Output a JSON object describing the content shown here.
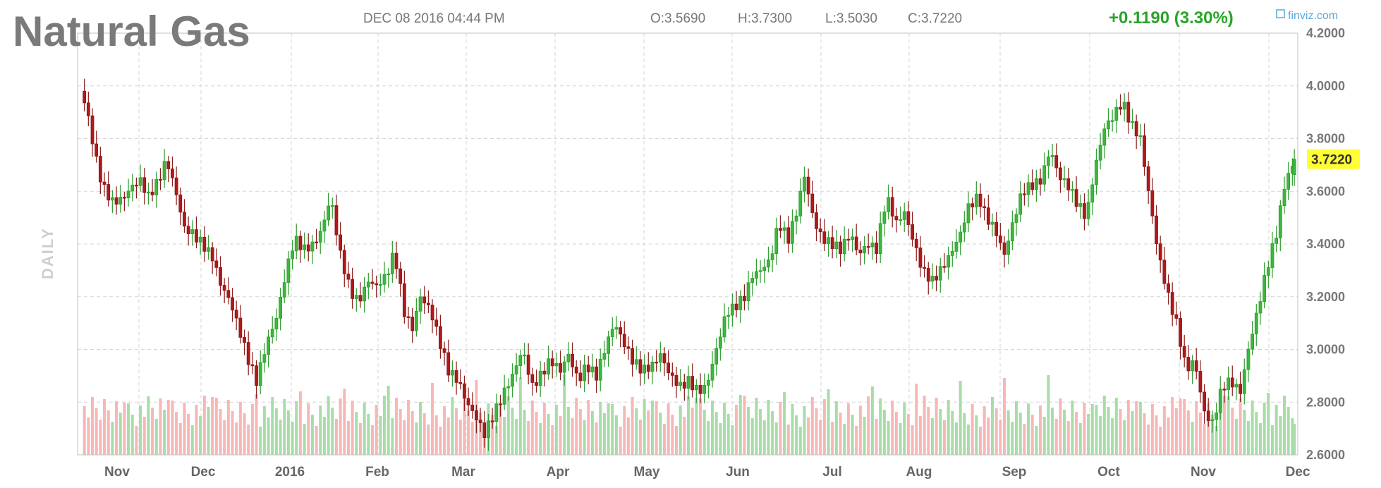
{
  "header": {
    "title": "Natural Gas",
    "datetime": "DEC 08 2016 04:44 PM",
    "open": "O:3.5690",
    "high": "H:3.7300",
    "low": "L:3.5030",
    "close": "C:3.7220",
    "change": "+0.1190 (3.30%)",
    "brand": "finviz.com",
    "period": "DAILY",
    "last_price_label": "3.7220"
  },
  "colors": {
    "up": "#2e9e2e",
    "up_body": "#3cb83c",
    "down": "#8b1a1a",
    "down_body": "#b01919",
    "vol_up": "#a8dca8",
    "vol_down": "#f7b7b7",
    "change_color": "#29a329"
  },
  "chart_data": {
    "type": "candlestick",
    "title": "Natural Gas",
    "ylim": [
      2.6,
      4.2
    ],
    "y_ticks": [
      "4.2000",
      "4.0000",
      "3.8000",
      "3.6000",
      "3.4000",
      "3.2000",
      "3.0000",
      "2.8000",
      "2.6000"
    ],
    "x_ticks": [
      "Nov",
      "Dec",
      "2016",
      "Feb",
      "Mar",
      "Apr",
      "May",
      "Jun",
      "Jul",
      "Aug",
      "Sep",
      "Oct",
      "Nov",
      "Dec"
    ],
    "grid": true,
    "last_close": 3.722,
    "closes": [
      [
        0,
        3.98
      ],
      [
        3,
        3.92
      ],
      [
        7,
        3.75
      ],
      [
        11,
        3.62
      ],
      [
        16,
        3.56
      ],
      [
        21,
        3.57
      ],
      [
        26,
        3.62
      ],
      [
        30,
        3.64
      ],
      [
        34,
        3.58
      ],
      [
        39,
        3.64
      ],
      [
        43,
        3.72
      ],
      [
        47,
        3.62
      ],
      [
        52,
        3.46
      ],
      [
        56,
        3.44
      ],
      [
        61,
        3.4
      ],
      [
        66,
        3.35
      ],
      [
        70,
        3.25
      ],
      [
        75,
        3.18
      ],
      [
        80,
        3.06
      ],
      [
        84,
        2.96
      ],
      [
        88,
        2.88
      ],
      [
        93,
        3.02
      ],
      [
        98,
        3.12
      ],
      [
        103,
        3.3
      ],
      [
        107,
        3.42
      ],
      [
        112,
        3.38
      ],
      [
        117,
        3.4
      ],
      [
        121,
        3.46
      ],
      [
        125,
        3.58
      ],
      [
        130,
        3.36
      ],
      [
        135,
        3.22
      ],
      [
        139,
        3.18
      ],
      [
        144,
        3.26
      ],
      [
        148,
        3.24
      ],
      [
        153,
        3.28
      ],
      [
        157,
        3.37
      ],
      [
        162,
        3.14
      ],
      [
        166,
        3.08
      ],
      [
        170,
        3.2
      ],
      [
        175,
        3.15
      ],
      [
        180,
        3.02
      ],
      [
        184,
        2.92
      ],
      [
        189,
        2.88
      ],
      [
        193,
        2.8
      ],
      [
        198,
        2.74
      ],
      [
        202,
        2.68
      ],
      [
        207,
        2.76
      ],
      [
        212,
        2.84
      ],
      [
        216,
        2.9
      ],
      [
        221,
        3.0
      ],
      [
        226,
        2.86
      ],
      [
        230,
        2.9
      ],
      [
        235,
        2.96
      ],
      [
        240,
        2.92
      ],
      [
        244,
        2.98
      ],
      [
        249,
        2.88
      ],
      [
        253,
        2.94
      ],
      [
        258,
        2.9
      ],
      [
        263,
        3.02
      ],
      [
        267,
        3.1
      ],
      [
        272,
        3.02
      ],
      [
        276,
        2.96
      ],
      [
        281,
        2.92
      ],
      [
        286,
        2.94
      ],
      [
        290,
        2.98
      ],
      [
        295,
        2.9
      ],
      [
        300,
        2.86
      ],
      [
        304,
        2.88
      ],
      [
        309,
        2.84
      ],
      [
        313,
        2.86
      ],
      [
        318,
        3.0
      ],
      [
        323,
        3.14
      ],
      [
        327,
        3.16
      ],
      [
        332,
        3.2
      ],
      [
        336,
        3.28
      ],
      [
        340,
        3.3
      ],
      [
        345,
        3.34
      ],
      [
        349,
        3.48
      ],
      [
        354,
        3.42
      ],
      [
        358,
        3.52
      ],
      [
        362,
        3.66
      ],
      [
        367,
        3.48
      ],
      [
        371,
        3.42
      ],
      [
        376,
        3.4
      ],
      [
        380,
        3.38
      ],
      [
        385,
        3.44
      ],
      [
        389,
        3.36
      ],
      [
        394,
        3.4
      ],
      [
        398,
        3.38
      ],
      [
        403,
        3.58
      ],
      [
        408,
        3.48
      ],
      [
        412,
        3.52
      ],
      [
        417,
        3.4
      ],
      [
        421,
        3.3
      ],
      [
        426,
        3.26
      ],
      [
        430,
        3.3
      ],
      [
        435,
        3.36
      ],
      [
        440,
        3.44
      ],
      [
        444,
        3.54
      ],
      [
        449,
        3.58
      ],
      [
        453,
        3.5
      ],
      [
        457,
        3.46
      ],
      [
        462,
        3.36
      ],
      [
        467,
        3.5
      ],
      [
        471,
        3.6
      ],
      [
        475,
        3.62
      ],
      [
        480,
        3.64
      ],
      [
        485,
        3.76
      ],
      [
        489,
        3.66
      ],
      [
        494,
        3.62
      ],
      [
        498,
        3.56
      ],
      [
        503,
        3.5
      ],
      [
        507,
        3.68
      ],
      [
        512,
        3.84
      ],
      [
        516,
        3.88
      ],
      [
        521,
        3.94
      ],
      [
        525,
        3.86
      ],
      [
        530,
        3.8
      ],
      [
        534,
        3.6
      ],
      [
        539,
        3.36
      ],
      [
        544,
        3.2
      ],
      [
        548,
        3.1
      ],
      [
        553,
        2.92
      ],
      [
        557,
        2.96
      ],
      [
        562,
        2.76
      ],
      [
        566,
        2.72
      ],
      [
        571,
        2.86
      ],
      [
        575,
        2.88
      ],
      [
        580,
        2.84
      ],
      [
        584,
        3.0
      ],
      [
        589,
        3.16
      ],
      [
        593,
        3.3
      ],
      [
        598,
        3.44
      ],
      [
        602,
        3.62
      ],
      [
        607,
        3.72
      ]
    ],
    "volume_range": [
      0,
      100
    ]
  }
}
